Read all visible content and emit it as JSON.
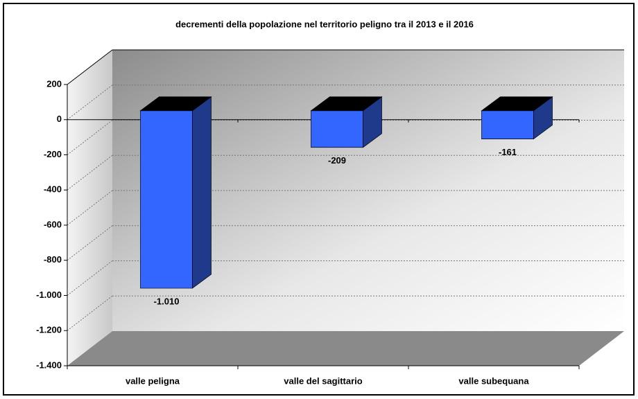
{
  "chart_data": {
    "type": "bar3d",
    "title": "decrementi della popolazione nel territorio peligno tra il 2013 e il 2016",
    "categories": [
      "valle peligna",
      "valle del sagittario",
      "valle subequana"
    ],
    "values": [
      -1010,
      -209,
      -161
    ],
    "value_labels": [
      "-1.010",
      "-209",
      "-161"
    ],
    "color": "#3366ff",
    "ylim": [
      -1400,
      200
    ],
    "yticks": [
      200,
      0,
      -200,
      -400,
      -600,
      -800,
      {
        "value": -1000,
        "label": "-1.000"
      },
      {
        "value": -1200,
        "label": "-1.200"
      },
      {
        "value": -1400,
        "label": "-1.400"
      }
    ],
    "grid": true
  }
}
